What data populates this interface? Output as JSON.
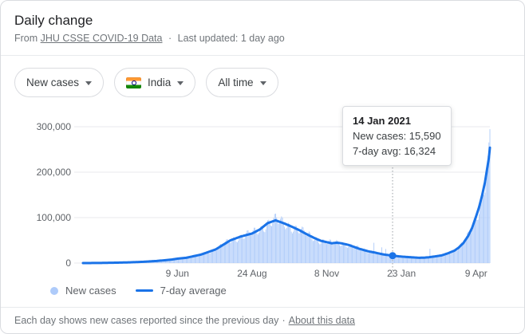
{
  "header": {
    "title": "Daily change",
    "from_prefix": "From",
    "source_link": "JHU CSSE COVID-19 Data",
    "separator": "·",
    "last_updated": "Last updated: 1 day ago"
  },
  "filters": {
    "metric": {
      "label": "New cases"
    },
    "region": {
      "label": "India",
      "flag": "india-flag"
    },
    "range": {
      "label": "All time"
    }
  },
  "tooltip": {
    "title": "14 Jan 2021",
    "new_cases_line": "New cases: 15,590",
    "avg_line": "7-day avg: 16,324"
  },
  "legend": {
    "new_cases": "New cases",
    "seven_day": "7-day average"
  },
  "footer": {
    "text": "Each day shows new cases reported since the previous day",
    "separator": "·",
    "link": "About this data"
  },
  "colors": {
    "line_blue": "#1a73e8",
    "bar_blue": "#aecbfa",
    "grid": "#e8eaed",
    "axis_text": "#5f6368",
    "guide_gray": "#9aa0a6"
  },
  "chart_data": {
    "type": "bar",
    "subtype": "daily bars with 7-day-average line overlay",
    "title": "Daily change – New cases – India – All time",
    "xlabel": "",
    "ylabel": "",
    "ylim": [
      0,
      300000
    ],
    "grid": "horizontal gridlines on",
    "legend_position": "bottom-left",
    "y_ticks": [
      {
        "value": 0,
        "label": "0"
      },
      {
        "value": 100000,
        "label": "100,000"
      },
      {
        "value": 200000,
        "label": "200,000"
      },
      {
        "value": 300000,
        "label": "300,000"
      }
    ],
    "x_total_days": 414,
    "x_ticks": [
      {
        "day": 96,
        "label": "9 Jun"
      },
      {
        "day": 172,
        "label": "24 Aug"
      },
      {
        "day": 248,
        "label": "8 Nov"
      },
      {
        "day": 324,
        "label": "23 Jan"
      },
      {
        "day": 400,
        "label": "9 Apr"
      }
    ],
    "series": [
      {
        "name": "New cases",
        "type": "bar",
        "color": "#aecbfa",
        "note": "daily values; approximated as 7-day average times weekly variation"
      },
      {
        "name": "7-day average",
        "type": "line",
        "color": "#1a73e8",
        "anchors": [
          [
            0,
            60
          ],
          [
            15,
            160
          ],
          [
            30,
            700
          ],
          [
            45,
            1400
          ],
          [
            60,
            2600
          ],
          [
            75,
            4600
          ],
          [
            90,
            7600
          ],
          [
            96,
            9600
          ],
          [
            105,
            11600
          ],
          [
            120,
            18600
          ],
          [
            135,
            30000
          ],
          [
            150,
            50000
          ],
          [
            160,
            58000
          ],
          [
            172,
            65000
          ],
          [
            180,
            74000
          ],
          [
            188,
            88000
          ],
          [
            196,
            94000
          ],
          [
            205,
            87000
          ],
          [
            212,
            80500
          ],
          [
            220,
            72500
          ],
          [
            228,
            63000
          ],
          [
            235,
            55500
          ],
          [
            242,
            49000
          ],
          [
            248,
            46000
          ],
          [
            253,
            43500
          ],
          [
            258,
            44800
          ],
          [
            263,
            43500
          ],
          [
            270,
            40000
          ],
          [
            281,
            31500
          ],
          [
            290,
            26000
          ],
          [
            296,
            23500
          ],
          [
            306,
            18800
          ],
          [
            315,
            16324
          ],
          [
            322,
            14600
          ],
          [
            328,
            13600
          ],
          [
            335,
            12600
          ],
          [
            342,
            11600
          ],
          [
            348,
            12000
          ],
          [
            352,
            12800
          ],
          [
            358,
            14600
          ],
          [
            365,
            16900
          ],
          [
            372,
            22000
          ],
          [
            378,
            27500
          ],
          [
            382,
            33500
          ],
          [
            387,
            44000
          ],
          [
            392,
            60000
          ],
          [
            396,
            78000
          ],
          [
            400,
            103000
          ],
          [
            403,
            123000
          ],
          [
            406,
            148000
          ],
          [
            409,
            178000
          ],
          [
            411,
            205000
          ],
          [
            413,
            232000
          ],
          [
            414,
            254000
          ]
        ]
      }
    ],
    "bars_render": {
      "weekly_amp": 0.12,
      "slow_amp": 0.06,
      "spikes": {
        "296": 1.9,
        "304": 1.75,
        "308": 1.7,
        "353": 2.4,
        "412": 1.08,
        "414": 1.16
      }
    },
    "highlight": {
      "day": 315,
      "date": "14 Jan 2021",
      "new_cases": 15590,
      "seven_day_avg": 16324
    }
  }
}
